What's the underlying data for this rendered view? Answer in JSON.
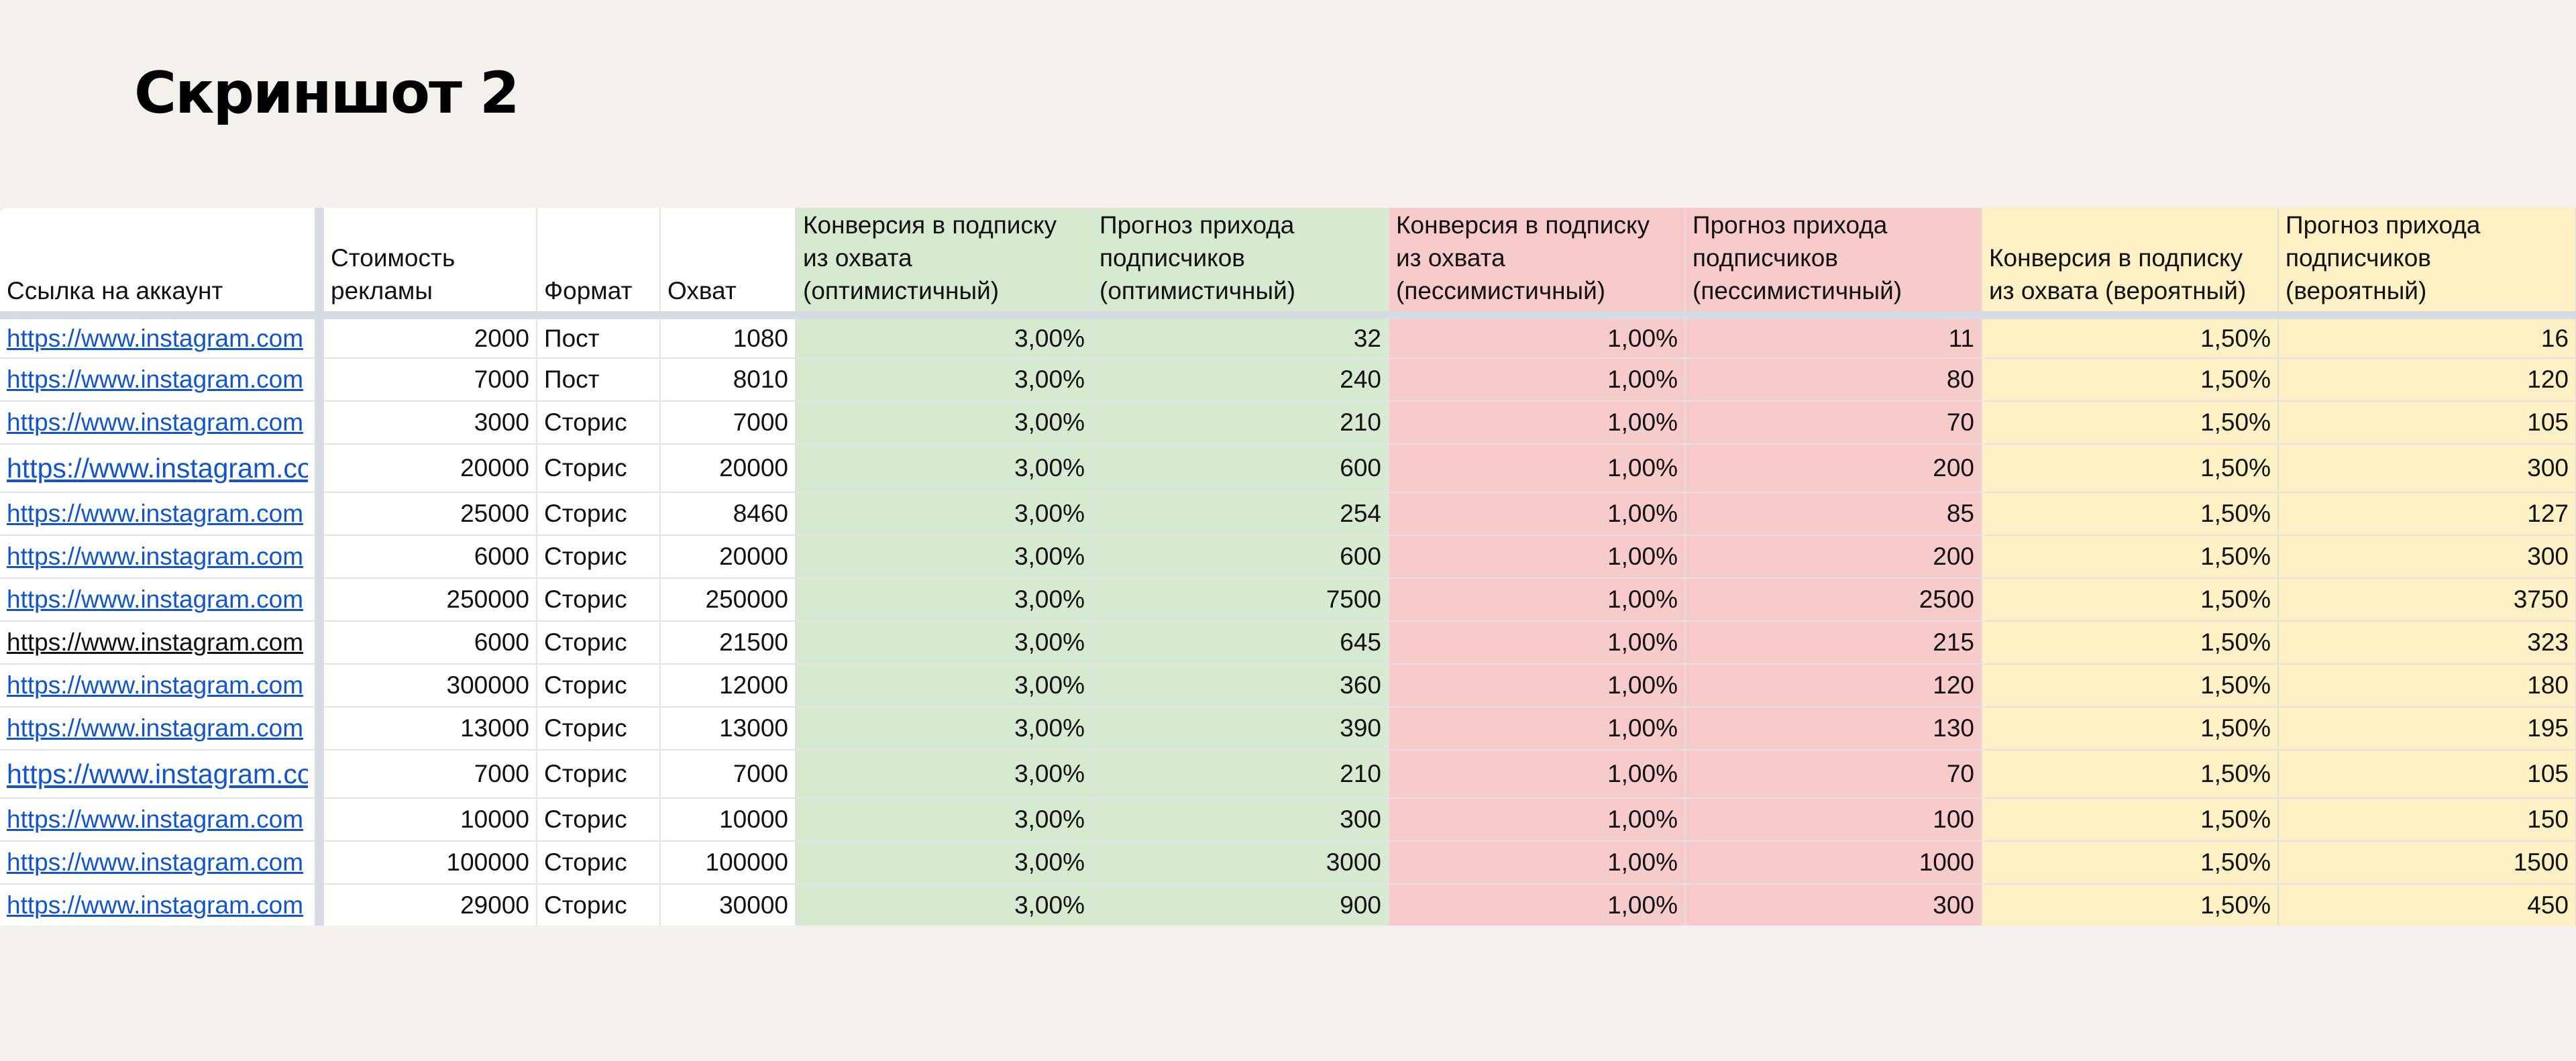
{
  "title": "Скриншот 2",
  "columns": [
    "Ссылка на аккаунт",
    "Стоимость рекламы",
    "Формат",
    "Охват",
    "Конверсия в подписку из охвата (оптимистичный)",
    "Прогноз прихода подписчиков (оптимистичный)",
    "Конверсия в подписку из охвата (пессимистичный)",
    "Прогноз прихода подписчиков (пессимистичный)",
    "Конверсия в подписку из охвата (вероятный)",
    "Прогноз прихода подписчиков (вероятный)"
  ],
  "colors": {
    "optimistic": "#d6ead0",
    "pessimistic": "#f8cbcb",
    "probable": "#fdf0c4",
    "link": "#1155cc",
    "background": "#f4f0eb"
  },
  "rows": [
    {
      "link": "https://www.instagram.com",
      "cost": "2000",
      "format": "Пост",
      "reach": "1080",
      "conv_opt": "3,00%",
      "subs_opt": "32",
      "conv_pes": "1,00%",
      "subs_pes": "11",
      "conv_prob": "1,50%",
      "subs_prob": "16"
    },
    {
      "link": "https://www.instagram.com",
      "cost": "7000",
      "format": "Пост",
      "reach": "8010",
      "conv_opt": "3,00%",
      "subs_opt": "240",
      "conv_pes": "1,00%",
      "subs_pes": "80",
      "conv_prob": "1,50%",
      "subs_prob": "120"
    },
    {
      "link": "https://www.instagram.com",
      "cost": "3000",
      "format": "Сторис",
      "reach": "7000",
      "conv_opt": "3,00%",
      "subs_opt": "210",
      "conv_pes": "1,00%",
      "subs_pes": "70",
      "conv_prob": "1,50%",
      "subs_prob": "105"
    },
    {
      "link": "https://www.instagram.com",
      "cost": "20000",
      "format": "Сторис",
      "reach": "20000",
      "conv_opt": "3,00%",
      "subs_opt": "600",
      "conv_pes": "1,00%",
      "subs_pes": "200",
      "conv_prob": "1,50%",
      "subs_prob": "300"
    },
    {
      "link": "https://www.instagram.com",
      "cost": "25000",
      "format": "Сторис",
      "reach": "8460",
      "conv_opt": "3,00%",
      "subs_opt": "254",
      "conv_pes": "1,00%",
      "subs_pes": "85",
      "conv_prob": "1,50%",
      "subs_prob": "127"
    },
    {
      "link": "https://www.instagram.com",
      "cost": "6000",
      "format": "Сторис",
      "reach": "20000",
      "conv_opt": "3,00%",
      "subs_opt": "600",
      "conv_pes": "1,00%",
      "subs_pes": "200",
      "conv_prob": "1,50%",
      "subs_prob": "300"
    },
    {
      "link": "https://www.instagram.com",
      "cost": "250000",
      "format": "Сторис",
      "reach": "250000",
      "conv_opt": "3,00%",
      "subs_opt": "7500",
      "conv_pes": "1,00%",
      "subs_pes": "2500",
      "conv_prob": "1,50%",
      "subs_prob": "3750"
    },
    {
      "link": "https://www.instagram.com",
      "cost": "6000",
      "format": "Сторис",
      "reach": "21500",
      "conv_opt": "3,00%",
      "subs_opt": "645",
      "conv_pes": "1,00%",
      "subs_pes": "215",
      "conv_prob": "1,50%",
      "subs_prob": "323"
    },
    {
      "link": "https://www.instagram.com",
      "cost": "300000",
      "format": "Сторис",
      "reach": "12000",
      "conv_opt": "3,00%",
      "subs_opt": "360",
      "conv_pes": "1,00%",
      "subs_pes": "120",
      "conv_prob": "1,50%",
      "subs_prob": "180"
    },
    {
      "link": "https://www.instagram.com",
      "cost": "13000",
      "format": "Сторис",
      "reach": "13000",
      "conv_opt": "3,00%",
      "subs_opt": "390",
      "conv_pes": "1,00%",
      "subs_pes": "130",
      "conv_prob": "1,50%",
      "subs_prob": "195"
    },
    {
      "link": "https://www.instagram.com",
      "cost": "7000",
      "format": "Сторис",
      "reach": "7000",
      "conv_opt": "3,00%",
      "subs_opt": "210",
      "conv_pes": "1,00%",
      "subs_pes": "70",
      "conv_prob": "1,50%",
      "subs_prob": "105"
    },
    {
      "link": "https://www.instagram.com",
      "cost": "10000",
      "format": "Сторис",
      "reach": "10000",
      "conv_opt": "3,00%",
      "subs_opt": "300",
      "conv_pes": "1,00%",
      "subs_pes": "100",
      "conv_prob": "1,50%",
      "subs_prob": "150"
    },
    {
      "link": "https://www.instagram.com",
      "cost": "100000",
      "format": "Сторис",
      "reach": "100000",
      "conv_opt": "3,00%",
      "subs_opt": "3000",
      "conv_pes": "1,00%",
      "subs_pes": "1000",
      "conv_prob": "1,50%",
      "subs_prob": "1500"
    },
    {
      "link": "https://www.instagram.com",
      "cost": "29000",
      "format": "Сторис",
      "reach": "30000",
      "conv_opt": "3,00%",
      "subs_opt": "900",
      "conv_pes": "1,00%",
      "subs_pes": "300",
      "conv_prob": "1,50%",
      "subs_prob": "450"
    }
  ]
}
